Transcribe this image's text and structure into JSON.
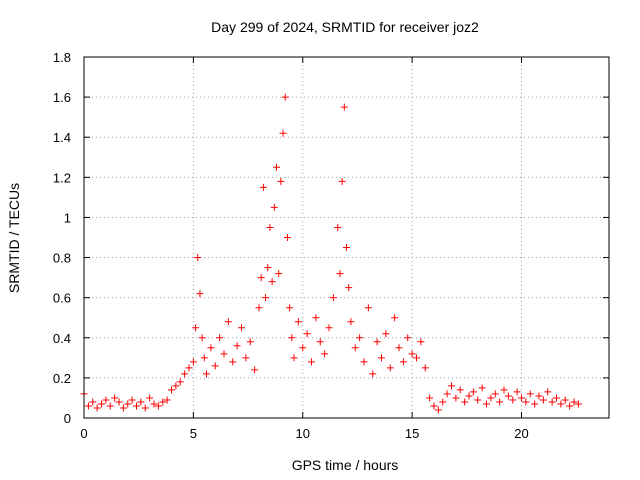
{
  "chart_data": {
    "type": "scatter",
    "title": "Day 299 of 2024, SRMTID for receiver joz2",
    "xlabel": "GPS time / hours",
    "ylabel": "SRMTID / TECUs",
    "xlim": [
      0,
      24
    ],
    "ylim": [
      0,
      1.8
    ],
    "xticks": [
      "0",
      "5",
      "10",
      "15",
      "20"
    ],
    "yticks": [
      "0",
      "0.2",
      "0.4",
      "0.6",
      "0.8",
      "1",
      "1.2",
      "1.4",
      "1.6",
      "1.8"
    ],
    "grid": true,
    "marker": "+",
    "color": "#ff0000",
    "series": [
      {
        "name": "joz2",
        "x": [
          0.0,
          0.2,
          0.4,
          0.6,
          0.8,
          1.0,
          1.2,
          1.4,
          1.6,
          1.8,
          2.0,
          2.2,
          2.4,
          2.6,
          2.8,
          3.0,
          3.2,
          3.4,
          3.6,
          3.8,
          4.0,
          4.2,
          4.4,
          4.6,
          4.8,
          5.0,
          5.1,
          5.2,
          5.3,
          5.4,
          5.5,
          5.6,
          5.8,
          6.0,
          6.2,
          6.4,
          6.6,
          6.8,
          7.0,
          7.2,
          7.4,
          7.6,
          7.8,
          8.0,
          8.1,
          8.2,
          8.3,
          8.4,
          8.5,
          8.6,
          8.7,
          8.8,
          8.9,
          9.0,
          9.1,
          9.2,
          9.3,
          9.4,
          9.5,
          9.6,
          9.8,
          10.0,
          10.2,
          10.4,
          10.6,
          10.8,
          11.0,
          11.2,
          11.4,
          11.6,
          11.7,
          11.8,
          11.9,
          12.0,
          12.1,
          12.2,
          12.4,
          12.6,
          12.8,
          13.0,
          13.2,
          13.4,
          13.6,
          13.8,
          14.0,
          14.2,
          14.4,
          14.6,
          14.8,
          15.0,
          15.2,
          15.4,
          15.6,
          15.8,
          16.0,
          16.2,
          16.4,
          16.6,
          16.8,
          17.0,
          17.2,
          17.4,
          17.6,
          17.8,
          18.0,
          18.2,
          18.4,
          18.6,
          18.8,
          19.0,
          19.2,
          19.4,
          19.6,
          19.8,
          20.0,
          20.2,
          20.4,
          20.6,
          20.8,
          21.0,
          21.2,
          21.4,
          21.6,
          21.8,
          22.0,
          22.2,
          22.4,
          22.6
        ],
        "y": [
          0.12,
          0.06,
          0.08,
          0.05,
          0.07,
          0.09,
          0.06,
          0.1,
          0.08,
          0.05,
          0.07,
          0.09,
          0.06,
          0.08,
          0.05,
          0.1,
          0.07,
          0.06,
          0.08,
          0.09,
          0.14,
          0.16,
          0.18,
          0.22,
          0.25,
          0.28,
          0.45,
          0.8,
          0.62,
          0.4,
          0.3,
          0.22,
          0.35,
          0.26,
          0.4,
          0.32,
          0.48,
          0.28,
          0.36,
          0.45,
          0.3,
          0.38,
          0.24,
          0.55,
          0.7,
          1.15,
          0.6,
          0.75,
          0.95,
          0.68,
          1.05,
          1.25,
          0.72,
          1.18,
          1.42,
          1.6,
          0.9,
          0.55,
          0.4,
          0.3,
          0.48,
          0.35,
          0.42,
          0.28,
          0.5,
          0.38,
          0.32,
          0.45,
          0.6,
          0.95,
          0.72,
          1.18,
          1.55,
          0.85,
          0.65,
          0.48,
          0.35,
          0.4,
          0.28,
          0.55,
          0.22,
          0.38,
          0.3,
          0.42,
          0.25,
          0.5,
          0.35,
          0.28,
          0.4,
          0.32,
          0.3,
          0.38,
          0.25,
          0.1,
          0.06,
          0.04,
          0.08,
          0.12,
          0.16,
          0.1,
          0.14,
          0.08,
          0.11,
          0.13,
          0.09,
          0.15,
          0.07,
          0.1,
          0.12,
          0.08,
          0.14,
          0.11,
          0.09,
          0.13,
          0.1,
          0.08,
          0.12,
          0.07,
          0.11,
          0.09,
          0.13,
          0.08,
          0.1,
          0.07,
          0.09,
          0.06,
          0.08,
          0.07
        ]
      }
    ]
  }
}
